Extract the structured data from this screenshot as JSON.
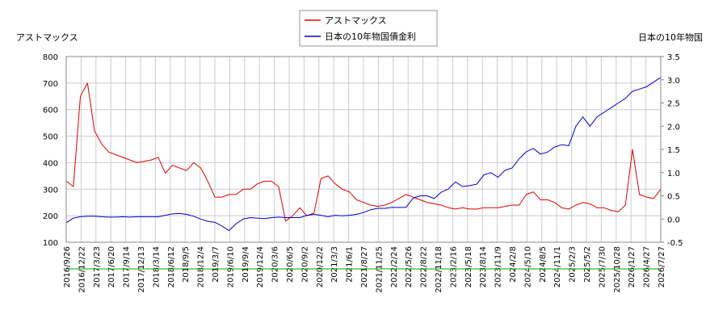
{
  "colors": {
    "left_series": "#dd0000",
    "right_series": "#0000cc",
    "grid": "#cccccc",
    "baseline": "#00aa00"
  },
  "chart_data": {
    "type": "line",
    "left_axis_label": "アストマックス",
    "right_axis_label": "日本の10年物国",
    "legend": {
      "placement": "top-center",
      "items": [
        "アストマックス",
        "日本の10年物国債金利"
      ]
    },
    "grid": true,
    "y_left": {
      "min": 100,
      "max": 800,
      "ticks": [
        100,
        200,
        300,
        400,
        500,
        600,
        700,
        800
      ]
    },
    "y_right": {
      "min": -0.5,
      "max": 3.5,
      "ticks": [
        "-0.5",
        "0.0",
        "0.5",
        "1.0",
        "1.5",
        "2.0",
        "2.5",
        "3.0",
        "3.5"
      ]
    },
    "x_labels": [
      "2016/9/26",
      "2016/12/22",
      "2017/3/23",
      "2017/6/20",
      "2017/9/14",
      "2017/12/13",
      "2018/3/14",
      "2018/6/12",
      "2018/9/5",
      "2018/12/4",
      "2019/3/7",
      "2019/6/10",
      "2019/9/4",
      "2019/12/4",
      "2020/3/6",
      "2020/6/5",
      "2020/9/2",
      "2020/12/2",
      "2021/3/3",
      "2021/6/1",
      "2021/8/27",
      "2021/11/25",
      "2022/2/24",
      "2022/5/26",
      "2022/8/22",
      "2022/11/18",
      "2023/2/16",
      "2023/5/18",
      "2023/8/14",
      "2023/11/9",
      "2024/2/8",
      "2024/5/10",
      "2024/8/5",
      "2024/11/1",
      "2025/2/3",
      "2025/5/2",
      "2025/7/30",
      "2025/10/28",
      "2026/1/27",
      "2026/4/27",
      "2026/7/27"
    ],
    "series": [
      {
        "name": "アストマックス",
        "axis": "left",
        "values": [
          330,
          310,
          650,
          700,
          520,
          470,
          440,
          430,
          420,
          410,
          400,
          405,
          410,
          420,
          360,
          390,
          380,
          370,
          400,
          380,
          330,
          270,
          270,
          280,
          280,
          300,
          300,
          320,
          330,
          330,
          310,
          180,
          200,
          230,
          200,
          210,
          340,
          350,
          320,
          300,
          290,
          260,
          250,
          240,
          235,
          240,
          250,
          265,
          280,
          270,
          260,
          250,
          245,
          240,
          230,
          225,
          230,
          225,
          225,
          230,
          230,
          230,
          235,
          240,
          240,
          280,
          290,
          260,
          260,
          250,
          230,
          225,
          240,
          250,
          245,
          230,
          230,
          220,
          215,
          240,
          450,
          280,
          270,
          265,
          300
        ]
      },
      {
        "name": "日本の10年物国債金利",
        "axis": "right",
        "values": [
          -0.08,
          0.02,
          0.05,
          0.06,
          0.06,
          0.05,
          0.04,
          0.04,
          0.05,
          0.04,
          0.05,
          0.05,
          0.05,
          0.05,
          0.08,
          0.11,
          0.12,
          0.1,
          0.06,
          0.0,
          -0.05,
          -0.07,
          -0.15,
          -0.25,
          -0.1,
          0.0,
          0.03,
          0.02,
          0.01,
          0.03,
          0.04,
          0.03,
          0.03,
          0.03,
          0.08,
          0.1,
          0.08,
          0.05,
          0.08,
          0.07,
          0.08,
          0.1,
          0.14,
          0.2,
          0.23,
          0.23,
          0.25,
          0.25,
          0.25,
          0.45,
          0.5,
          0.5,
          0.44,
          0.58,
          0.65,
          0.8,
          0.7,
          0.72,
          0.75,
          0.95,
          1.0,
          0.9,
          1.05,
          1.1,
          1.3,
          1.45,
          1.52,
          1.4,
          1.44,
          1.55,
          1.6,
          1.58,
          2.0,
          2.2,
          2.0,
          2.2,
          2.3,
          2.4,
          2.5,
          2.6,
          2.75,
          2.8,
          2.85,
          2.95,
          3.05
        ]
      }
    ]
  }
}
